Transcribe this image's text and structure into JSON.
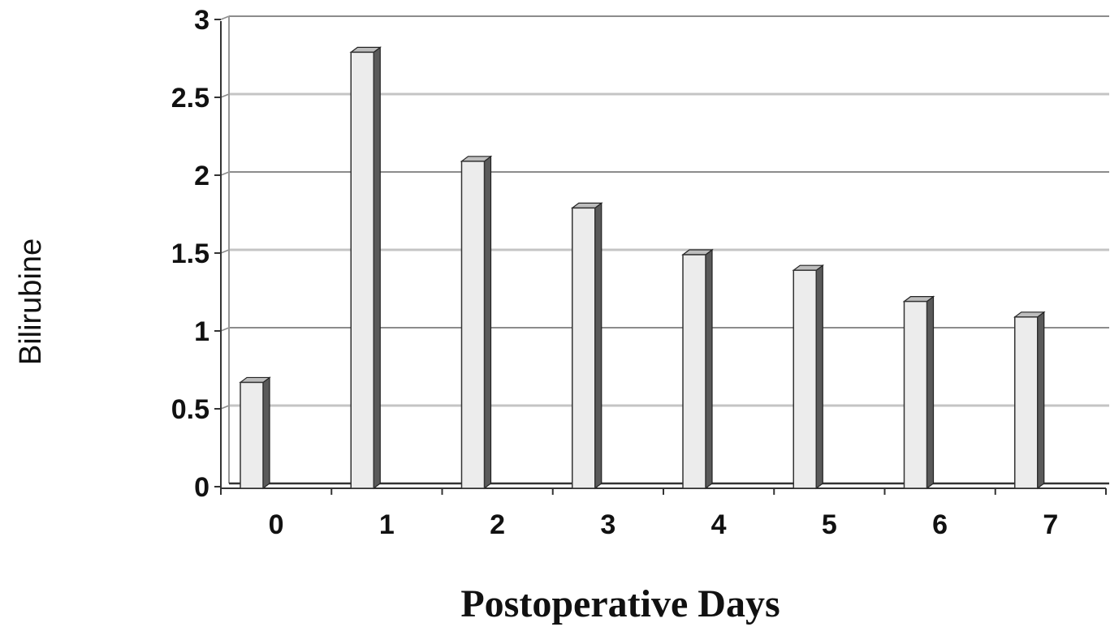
{
  "chart_data": {
    "type": "bar",
    "title": "",
    "xlabel": "Postoperative Days",
    "ylabel": "Bilirubine",
    "categories": [
      "0",
      "1",
      "2",
      "3",
      "4",
      "5",
      "6",
      "7"
    ],
    "values": [
      0.68,
      2.8,
      2.1,
      1.8,
      1.5,
      1.4,
      1.2,
      1.1
    ],
    "ylim": [
      0,
      3
    ],
    "yticks": [
      "0",
      "0.5",
      "1",
      "1.5",
      "2",
      "2.5",
      "3"
    ],
    "grid": true,
    "legend": "none",
    "style": "3d-bars",
    "colors": {
      "bar_face": "#ececec",
      "bar_side": "#5a5a5a",
      "bar_top": "#bdbdbd",
      "gridline": "#8c8c8c",
      "gridline_light": "#c4c4c4",
      "axis": "#333333"
    }
  }
}
